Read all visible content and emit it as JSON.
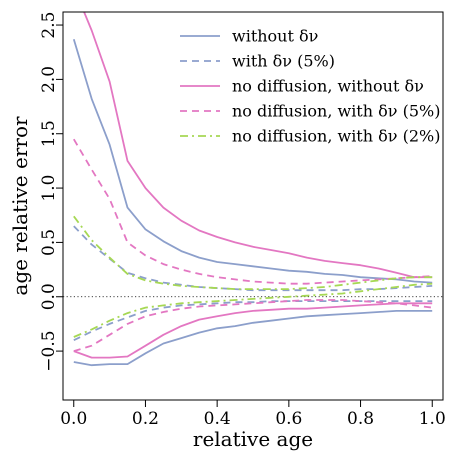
{
  "chart_data": {
    "type": "line",
    "xlabel": "relative age",
    "ylabel": "age relative error",
    "xlim": [
      -0.03,
      1.03
    ],
    "ylim": [
      -0.95,
      2.62
    ],
    "x_ticks": [
      0.0,
      0.2,
      0.4,
      0.6,
      0.8,
      1.0
    ],
    "x_tick_labels": [
      "0.0",
      "0.2",
      "0.4",
      "0.6",
      "0.8",
      "1.0"
    ],
    "y_ticks": [
      -0.5,
      0.0,
      0.5,
      1.0,
      1.5,
      2.0,
      2.5
    ],
    "y_tick_labels": [
      "−0.5",
      "0.0",
      "0.5",
      "1.0",
      "1.5",
      "2.0",
      "2.5"
    ],
    "reference_line": {
      "y": 0.0,
      "style": "dotted"
    },
    "grid": false,
    "legend_position": "top-right",
    "x": [
      0.0,
      0.05,
      0.1,
      0.15,
      0.2,
      0.25,
      0.3,
      0.35,
      0.4,
      0.45,
      0.5,
      0.55,
      0.6,
      0.65,
      0.7,
      0.75,
      0.8,
      0.85,
      0.9,
      0.95,
      1.0
    ],
    "series": [
      {
        "name": "without  δν",
        "color": "#8c9fcb",
        "dash": "solid",
        "upper": [
          2.37,
          1.82,
          1.4,
          0.82,
          0.62,
          0.51,
          0.42,
          0.36,
          0.32,
          0.3,
          0.28,
          0.26,
          0.24,
          0.23,
          0.21,
          0.2,
          0.18,
          0.17,
          0.16,
          0.14,
          0.13
        ],
        "lower": [
          -0.6,
          -0.63,
          -0.62,
          -0.62,
          -0.52,
          -0.43,
          -0.38,
          -0.33,
          -0.29,
          -0.27,
          -0.24,
          -0.22,
          -0.2,
          -0.18,
          -0.17,
          -0.16,
          -0.15,
          -0.14,
          -0.13,
          -0.13,
          -0.13
        ]
      },
      {
        "name": "with δν (5%)",
        "color": "#8c9fcb",
        "dash": "dashed",
        "upper": [
          0.65,
          0.48,
          0.35,
          0.22,
          0.17,
          0.13,
          0.11,
          0.09,
          0.08,
          0.07,
          0.06,
          0.06,
          0.06,
          0.06,
          0.06,
          0.06,
          0.07,
          0.07,
          0.08,
          0.09,
          0.1
        ],
        "lower": [
          -0.4,
          -0.32,
          -0.25,
          -0.19,
          -0.13,
          -0.1,
          -0.08,
          -0.07,
          -0.06,
          -0.05,
          -0.05,
          -0.04,
          -0.04,
          -0.04,
          -0.04,
          -0.04,
          -0.04,
          -0.04,
          -0.04,
          -0.04,
          -0.04
        ]
      },
      {
        "name": "no diffusion, without δν",
        "color": "#e377c2",
        "dash": "solid",
        "upper": [
          2.85,
          2.45,
          1.98,
          1.25,
          1.0,
          0.82,
          0.7,
          0.61,
          0.55,
          0.5,
          0.46,
          0.43,
          0.4,
          0.36,
          0.33,
          0.31,
          0.29,
          0.26,
          0.22,
          0.18,
          0.18
        ],
        "lower": [
          -0.5,
          -0.56,
          -0.56,
          -0.55,
          -0.45,
          -0.35,
          -0.27,
          -0.21,
          -0.18,
          -0.15,
          -0.13,
          -0.12,
          -0.11,
          -0.11,
          -0.1,
          -0.09,
          -0.08,
          -0.07,
          -0.06,
          -0.06,
          -0.06
        ]
      },
      {
        "name": "no diffusion, with δν (5%)",
        "color": "#e377c2",
        "dash": "dashed",
        "upper": [
          1.45,
          1.17,
          0.9,
          0.5,
          0.38,
          0.3,
          0.25,
          0.21,
          0.18,
          0.16,
          0.14,
          0.13,
          0.12,
          0.12,
          0.13,
          0.14,
          0.15,
          0.16,
          0.17,
          0.18,
          0.19
        ],
        "lower": [
          -0.5,
          -0.45,
          -0.35,
          -0.25,
          -0.18,
          -0.14,
          -0.11,
          -0.09,
          -0.08,
          -0.07,
          -0.06,
          -0.05,
          -0.04,
          -0.03,
          -0.03,
          -0.03,
          -0.04,
          -0.05,
          -0.06,
          -0.08,
          -0.1
        ]
      },
      {
        "name": "no diffusion, with δν (2%)",
        "color": "#a6d854",
        "dash": "dashdot",
        "upper": [
          0.74,
          0.52,
          0.36,
          0.21,
          0.15,
          0.12,
          0.1,
          0.09,
          0.08,
          0.07,
          0.07,
          0.07,
          0.07,
          0.08,
          0.09,
          0.11,
          0.13,
          0.15,
          0.17,
          0.18,
          0.18
        ],
        "lower": [
          -0.37,
          -0.3,
          -0.22,
          -0.15,
          -0.1,
          -0.08,
          -0.06,
          -0.05,
          -0.04,
          -0.03,
          -0.02,
          -0.01,
          0.0,
          0.01,
          0.02,
          0.03,
          0.05,
          0.07,
          0.09,
          0.11,
          0.12
        ]
      }
    ]
  }
}
